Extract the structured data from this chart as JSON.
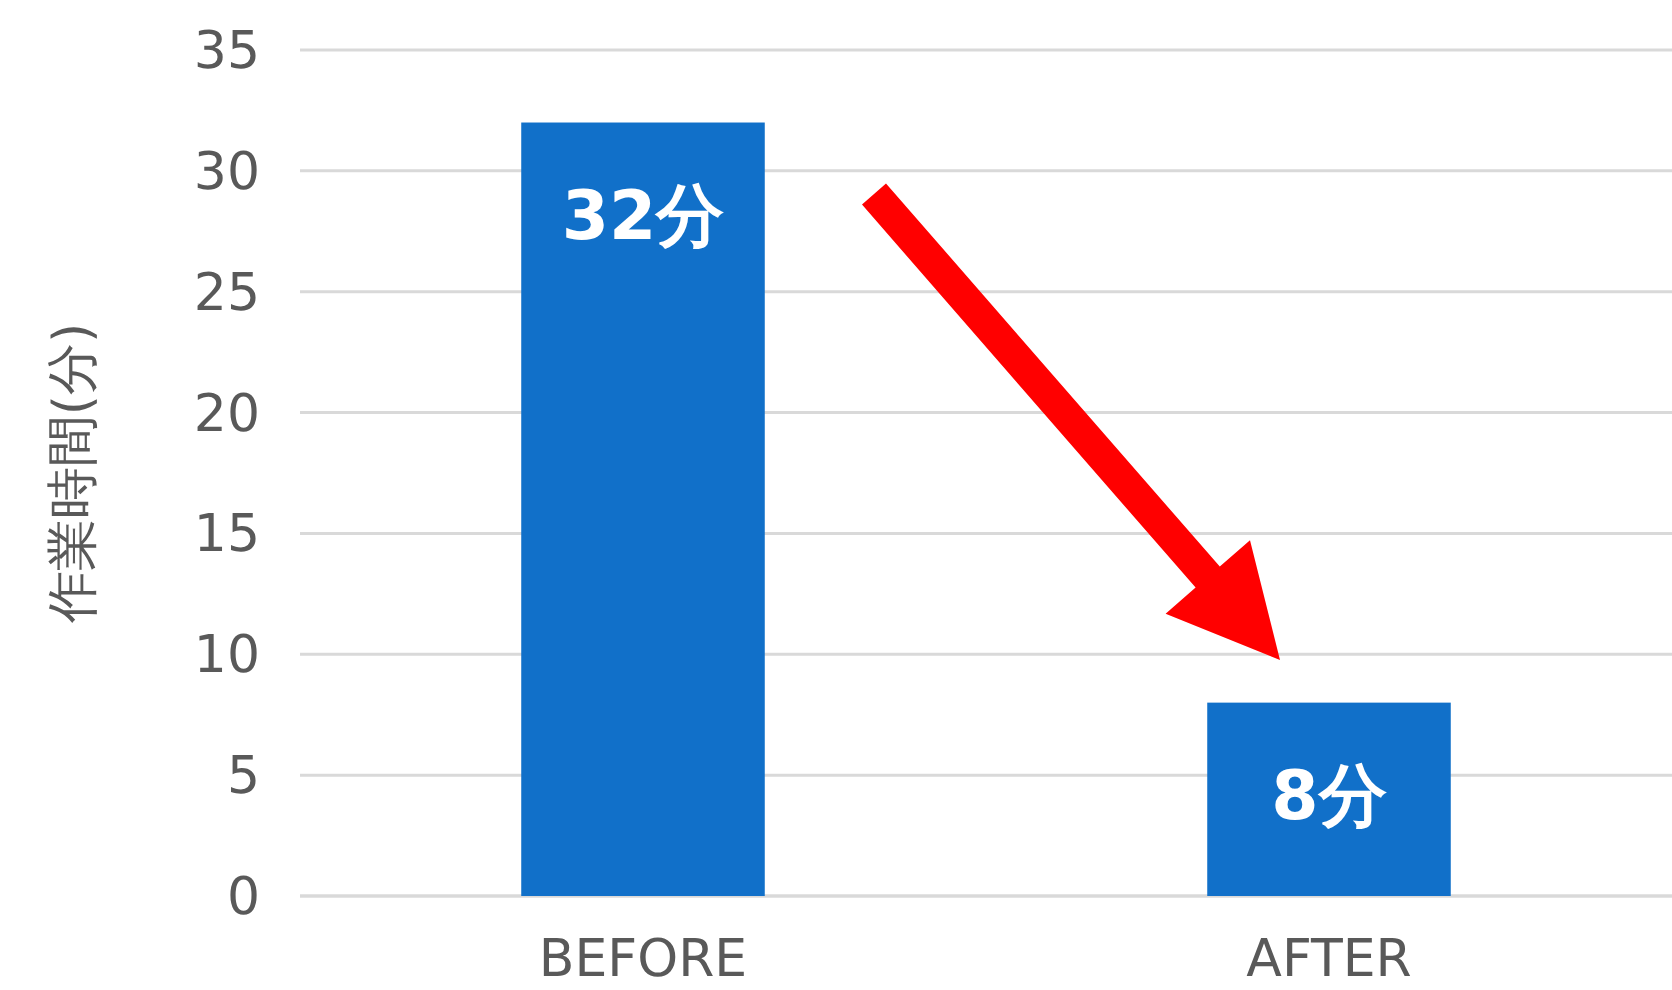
{
  "chart_data": {
    "type": "bar",
    "ylabel": "作業時間(分)",
    "categories": [
      "BEFORE",
      "AFTER"
    ],
    "values": [
      32,
      8
    ],
    "color": "#1170c9",
    "ylim": [
      0,
      35
    ],
    "yticks": [
      0,
      5,
      10,
      15,
      20,
      25,
      30,
      35
    ],
    "grid": "y",
    "value_labels": [
      "32分",
      "8分"
    ]
  }
}
